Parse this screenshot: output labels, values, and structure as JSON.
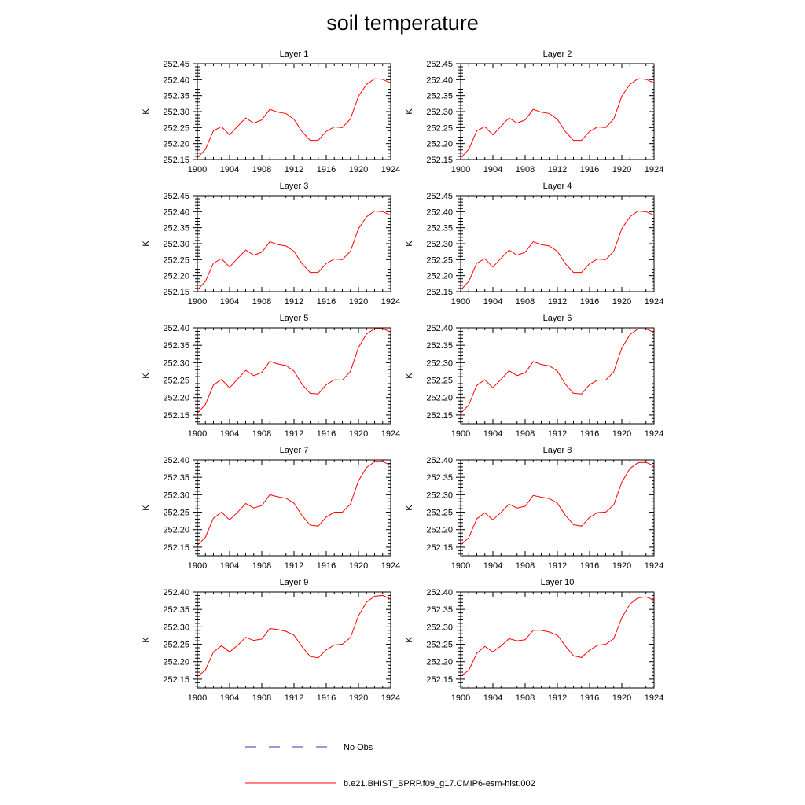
{
  "title": "soil temperature",
  "legend": {
    "entries": [
      {
        "label": "No Obs",
        "color": "#3333aa",
        "style": "dashed"
      },
      {
        "label": "b.e21.BHIST_BPRP.f09_g17.CMIP6-esm-hist.002",
        "color": "#ff0000",
        "style": "solid"
      }
    ]
  },
  "chart_data": [
    {
      "type": "line",
      "title": "Layer 1",
      "xlabel": "",
      "ylabel": "K",
      "xlim": [
        1900,
        1924
      ],
      "ylim": [
        252.15,
        252.45
      ],
      "xticks": [
        "1900",
        "1904",
        "1908",
        "1912",
        "1916",
        "1920",
        "1924"
      ],
      "yticks": [
        "252.15",
        "252.20",
        "252.25",
        "252.30",
        "252.35",
        "252.40",
        "252.45"
      ],
      "x": [
        1900,
        1901,
        1902,
        1903,
        1904,
        1905,
        1906,
        1907,
        1908,
        1909,
        1910,
        1911,
        1912,
        1913,
        1914,
        1915,
        1916,
        1917,
        1918,
        1919,
        1920,
        1921,
        1922,
        1923,
        1924
      ],
      "series": [
        {
          "name": "b.e21.BHIST_BPRP.f09_g17.CMIP6-esm-hist.002",
          "color": "#ff0000",
          "values": [
            252.155,
            252.182,
            252.24,
            252.253,
            252.227,
            252.254,
            252.28,
            252.264,
            252.274,
            252.307,
            252.298,
            252.294,
            252.276,
            252.237,
            252.21,
            252.21,
            252.238,
            252.252,
            252.25,
            252.277,
            252.348,
            252.385,
            252.403,
            252.401,
            252.39
          ]
        }
      ]
    },
    {
      "type": "line",
      "title": "Layer 2",
      "xlabel": "",
      "ylabel": "K",
      "xlim": [
        1900,
        1924
      ],
      "ylim": [
        252.15,
        252.45
      ],
      "xticks": [
        "1900",
        "1904",
        "1908",
        "1912",
        "1916",
        "1920",
        "1924"
      ],
      "yticks": [
        "252.15",
        "252.20",
        "252.25",
        "252.30",
        "252.35",
        "252.40",
        "252.45"
      ],
      "x": [
        1900,
        1901,
        1902,
        1903,
        1904,
        1905,
        1906,
        1907,
        1908,
        1909,
        1910,
        1911,
        1912,
        1913,
        1914,
        1915,
        1916,
        1917,
        1918,
        1919,
        1920,
        1921,
        1922,
        1923,
        1924
      ],
      "series": [
        {
          "name": "b.e21.BHIST_BPRP.f09_g17.CMIP6-esm-hist.002",
          "color": "#ff0000",
          "values": [
            252.155,
            252.182,
            252.24,
            252.253,
            252.227,
            252.254,
            252.28,
            252.264,
            252.274,
            252.307,
            252.298,
            252.294,
            252.276,
            252.237,
            252.21,
            252.21,
            252.238,
            252.252,
            252.25,
            252.277,
            252.348,
            252.385,
            252.403,
            252.401,
            252.39
          ]
        }
      ]
    },
    {
      "type": "line",
      "title": "Layer 3",
      "xlabel": "",
      "ylabel": "K",
      "xlim": [
        1900,
        1924
      ],
      "ylim": [
        252.15,
        252.45
      ],
      "xticks": [
        "1900",
        "1904",
        "1908",
        "1912",
        "1916",
        "1920",
        "1924"
      ],
      "yticks": [
        "252.15",
        "252.20",
        "252.25",
        "252.30",
        "252.35",
        "252.40",
        "252.45"
      ],
      "x": [
        1900,
        1901,
        1902,
        1903,
        1904,
        1905,
        1906,
        1907,
        1908,
        1909,
        1910,
        1911,
        1912,
        1913,
        1914,
        1915,
        1916,
        1917,
        1918,
        1919,
        1920,
        1921,
        1922,
        1923,
        1924
      ],
      "series": [
        {
          "name": "b.e21.BHIST_BPRP.f09_g17.CMIP6-esm-hist.002",
          "color": "#ff0000",
          "values": [
            252.155,
            252.182,
            252.239,
            252.253,
            252.227,
            252.254,
            252.28,
            252.264,
            252.273,
            252.306,
            252.297,
            252.293,
            252.276,
            252.237,
            252.21,
            252.21,
            252.238,
            252.252,
            252.25,
            252.276,
            252.347,
            252.384,
            252.402,
            252.4,
            252.389
          ]
        }
      ]
    },
    {
      "type": "line",
      "title": "Layer 4",
      "xlabel": "",
      "ylabel": "K",
      "xlim": [
        1900,
        1924
      ],
      "ylim": [
        252.15,
        252.45
      ],
      "xticks": [
        "1900",
        "1904",
        "1908",
        "1912",
        "1916",
        "1920",
        "1924"
      ],
      "yticks": [
        "252.15",
        "252.20",
        "252.25",
        "252.30",
        "252.35",
        "252.40",
        "252.45"
      ],
      "x": [
        1900,
        1901,
        1902,
        1903,
        1904,
        1905,
        1906,
        1907,
        1908,
        1909,
        1910,
        1911,
        1912,
        1913,
        1914,
        1915,
        1916,
        1917,
        1918,
        1919,
        1920,
        1921,
        1922,
        1923,
        1924
      ],
      "series": [
        {
          "name": "b.e21.BHIST_BPRP.f09_g17.CMIP6-esm-hist.002",
          "color": "#ff0000",
          "values": [
            252.155,
            252.182,
            252.239,
            252.253,
            252.227,
            252.254,
            252.28,
            252.264,
            252.273,
            252.306,
            252.297,
            252.293,
            252.276,
            252.237,
            252.21,
            252.21,
            252.238,
            252.252,
            252.25,
            252.276,
            252.347,
            252.384,
            252.402,
            252.4,
            252.389
          ]
        }
      ]
    },
    {
      "type": "line",
      "title": "Layer 5",
      "xlabel": "",
      "ylabel": "K",
      "xlim": [
        1900,
        1924
      ],
      "ylim": [
        252.125,
        252.4
      ],
      "xticks": [
        "1900",
        "1904",
        "1908",
        "1912",
        "1916",
        "1920",
        "1924"
      ],
      "yticks": [
        "252.15",
        "252.20",
        "252.25",
        "252.30",
        "252.35",
        "252.40"
      ],
      "x": [
        1900,
        1901,
        1902,
        1903,
        1904,
        1905,
        1906,
        1907,
        1908,
        1909,
        1910,
        1911,
        1912,
        1913,
        1914,
        1915,
        1916,
        1917,
        1918,
        1919,
        1920,
        1921,
        1922,
        1923,
        1924
      ],
      "series": [
        {
          "name": "b.e21.BHIST_BPRP.f09_g17.CMIP6-esm-hist.002",
          "color": "#ff0000",
          "values": [
            252.155,
            252.18,
            252.236,
            252.252,
            252.228,
            252.253,
            252.278,
            252.263,
            252.272,
            252.304,
            252.296,
            252.292,
            252.276,
            252.238,
            252.212,
            252.21,
            252.237,
            252.251,
            252.25,
            252.275,
            252.344,
            252.382,
            252.398,
            252.398,
            252.388
          ]
        }
      ]
    },
    {
      "type": "line",
      "title": "Layer 6",
      "xlabel": "",
      "ylabel": "K",
      "xlim": [
        1900,
        1924
      ],
      "ylim": [
        252.125,
        252.4
      ],
      "xticks": [
        "1900",
        "1904",
        "1908",
        "1912",
        "1916",
        "1920",
        "1924"
      ],
      "yticks": [
        "252.15",
        "252.20",
        "252.25",
        "252.30",
        "252.35",
        "252.40"
      ],
      "x": [
        1900,
        1901,
        1902,
        1903,
        1904,
        1905,
        1906,
        1907,
        1908,
        1909,
        1910,
        1911,
        1912,
        1913,
        1914,
        1915,
        1916,
        1917,
        1918,
        1919,
        1920,
        1921,
        1922,
        1923,
        1924
      ],
      "series": [
        {
          "name": "b.e21.BHIST_BPRP.f09_g17.CMIP6-esm-hist.002",
          "color": "#ff0000",
          "values": [
            252.155,
            252.179,
            252.235,
            252.251,
            252.228,
            252.252,
            252.277,
            252.263,
            252.271,
            252.303,
            252.295,
            252.291,
            252.276,
            252.238,
            252.212,
            252.21,
            252.237,
            252.25,
            252.25,
            252.274,
            252.342,
            252.38,
            252.397,
            252.397,
            252.387
          ]
        }
      ]
    },
    {
      "type": "line",
      "title": "Layer 7",
      "xlabel": "",
      "ylabel": "K",
      "xlim": [
        1900,
        1924
      ],
      "ylim": [
        252.125,
        252.4
      ],
      "xticks": [
        "1900",
        "1904",
        "1908",
        "1912",
        "1916",
        "1920",
        "1924"
      ],
      "yticks": [
        "252.15",
        "252.20",
        "252.25",
        "252.30",
        "252.35",
        "252.40"
      ],
      "x": [
        1900,
        1901,
        1902,
        1903,
        1904,
        1905,
        1906,
        1907,
        1908,
        1909,
        1910,
        1911,
        1912,
        1913,
        1914,
        1915,
        1916,
        1917,
        1918,
        1919,
        1920,
        1921,
        1922,
        1923,
        1924
      ],
      "series": [
        {
          "name": "b.e21.BHIST_BPRP.f09_g17.CMIP6-esm-hist.002",
          "color": "#ff0000",
          "values": [
            252.155,
            252.178,
            252.233,
            252.25,
            252.228,
            252.25,
            252.275,
            252.262,
            252.269,
            252.3,
            252.294,
            252.29,
            252.276,
            252.24,
            252.213,
            252.21,
            252.236,
            252.25,
            252.25,
            252.273,
            252.34,
            252.378,
            252.395,
            252.395,
            252.385
          ]
        }
      ]
    },
    {
      "type": "line",
      "title": "Layer 8",
      "xlabel": "",
      "ylabel": "K",
      "xlim": [
        1900,
        1924
      ],
      "ylim": [
        252.125,
        252.4
      ],
      "xticks": [
        "1900",
        "1904",
        "1908",
        "1912",
        "1916",
        "1920",
        "1924"
      ],
      "yticks": [
        "252.15",
        "252.20",
        "252.25",
        "252.30",
        "252.35",
        "252.40"
      ],
      "x": [
        1900,
        1901,
        1902,
        1903,
        1904,
        1905,
        1906,
        1907,
        1908,
        1909,
        1910,
        1911,
        1912,
        1913,
        1914,
        1915,
        1916,
        1917,
        1918,
        1919,
        1920,
        1921,
        1922,
        1923,
        1924
      ],
      "series": [
        {
          "name": "b.e21.BHIST_BPRP.f09_g17.CMIP6-esm-hist.002",
          "color": "#ff0000",
          "values": [
            252.156,
            252.177,
            252.231,
            252.248,
            252.228,
            252.249,
            252.273,
            252.262,
            252.267,
            252.298,
            252.293,
            252.289,
            252.276,
            252.241,
            252.214,
            252.21,
            252.235,
            252.249,
            252.25,
            252.271,
            252.336,
            252.375,
            252.392,
            252.393,
            252.383
          ]
        }
      ]
    },
    {
      "type": "line",
      "title": "Layer 9",
      "xlabel": "",
      "ylabel": "K",
      "xlim": [
        1900,
        1924
      ],
      "ylim": [
        252.125,
        252.4
      ],
      "xticks": [
        "1900",
        "1904",
        "1908",
        "1912",
        "1916",
        "1920",
        "1924"
      ],
      "yticks": [
        "252.15",
        "252.20",
        "252.25",
        "252.30",
        "252.35",
        "252.40"
      ],
      "x": [
        1900,
        1901,
        1902,
        1903,
        1904,
        1905,
        1906,
        1907,
        1908,
        1909,
        1910,
        1911,
        1912,
        1913,
        1914,
        1915,
        1916,
        1917,
        1918,
        1919,
        1920,
        1921,
        1922,
        1923,
        1924
      ],
      "series": [
        {
          "name": "b.e21.BHIST_BPRP.f09_g17.CMIP6-esm-hist.002",
          "color": "#ff0000",
          "values": [
            252.157,
            252.176,
            252.228,
            252.246,
            252.228,
            252.247,
            252.27,
            252.261,
            252.265,
            252.295,
            252.292,
            252.287,
            252.276,
            252.243,
            252.215,
            252.211,
            252.234,
            252.248,
            252.25,
            252.269,
            252.332,
            252.371,
            252.388,
            252.39,
            252.38
          ]
        }
      ]
    },
    {
      "type": "line",
      "title": "Layer 10",
      "xlabel": "",
      "ylabel": "K",
      "xlim": [
        1900,
        1924
      ],
      "ylim": [
        252.125,
        252.4
      ],
      "xticks": [
        "1900",
        "1904",
        "1908",
        "1912",
        "1916",
        "1920",
        "1924"
      ],
      "yticks": [
        "252.15",
        "252.20",
        "252.25",
        "252.30",
        "252.35",
        "252.40"
      ],
      "x": [
        1900,
        1901,
        1902,
        1903,
        1904,
        1905,
        1906,
        1907,
        1908,
        1909,
        1910,
        1911,
        1912,
        1913,
        1914,
        1915,
        1916,
        1917,
        1918,
        1919,
        1920,
        1921,
        1922,
        1923,
        1924
      ],
      "series": [
        {
          "name": "b.e21.BHIST_BPRP.f09_g17.CMIP6-esm-hist.002",
          "color": "#ff0000",
          "values": [
            252.159,
            252.175,
            252.224,
            252.244,
            252.228,
            252.245,
            252.266,
            252.26,
            252.263,
            252.29,
            252.29,
            252.285,
            252.276,
            252.245,
            252.217,
            252.212,
            252.233,
            252.247,
            252.25,
            252.266,
            252.326,
            252.365,
            252.383,
            252.386,
            252.376
          ]
        }
      ]
    }
  ]
}
